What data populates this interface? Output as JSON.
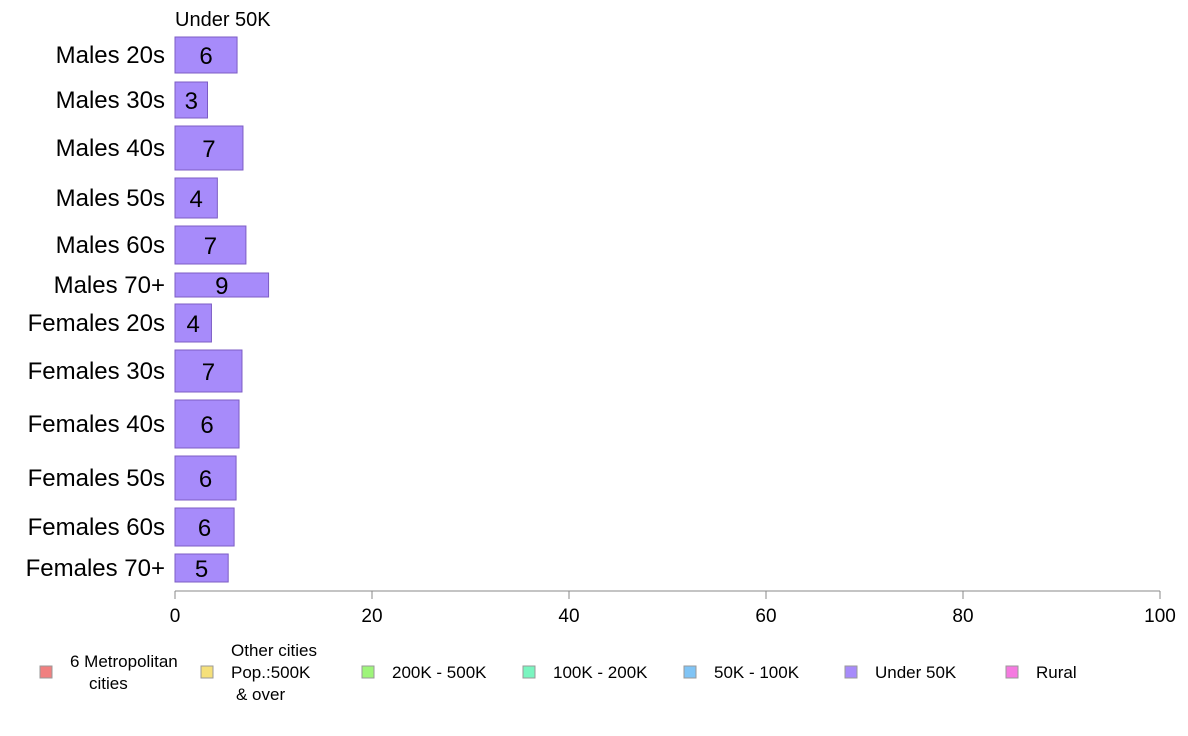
{
  "chart_data": {
    "type": "bar",
    "orientation": "horizontal",
    "title": "Under 50K",
    "categories": [
      "Males 20s",
      "Males 30s",
      "Males 40s",
      "Males 50s",
      "Males 60s",
      "Males 70+",
      "Females 20s",
      "Females 30s",
      "Females 40s",
      "Females 50s",
      "Females 60s",
      "Females 70+"
    ],
    "values": [
      6.3,
      3.3,
      6.9,
      4.3,
      7.2,
      9.5,
      3.7,
      6.8,
      6.5,
      6.2,
      6.0,
      5.4
    ],
    "value_labels": [
      "6",
      "3",
      "7",
      "4",
      "7",
      "9",
      "4",
      "7",
      "6",
      "6",
      "6",
      "5"
    ],
    "bar_color": "#a78bfa",
    "bar_border": "#7c5cc4",
    "xlim": [
      0,
      100
    ],
    "xticks": [
      0,
      20,
      40,
      60,
      80,
      100
    ],
    "grid": false,
    "legend_position": "bottom",
    "legend": [
      {
        "label": [
          "6 Metropolitan",
          "cities"
        ],
        "color": "#f08080"
      },
      {
        "label": [
          "Other cities",
          "Pop.:500K",
          "& over"
        ],
        "color": "#f5e07a"
      },
      {
        "label": [
          "200K - 500K"
        ],
        "color": "#9ef57a"
      },
      {
        "label": [
          "100K - 200K"
        ],
        "color": "#7af5c0"
      },
      {
        "label": [
          "50K - 100K"
        ],
        "color": "#80c4f5"
      },
      {
        "label": [
          "Under 50K"
        ],
        "color": "#a78bfa"
      },
      {
        "label": [
          "Rural"
        ],
        "color": "#f57ae0"
      }
    ]
  }
}
